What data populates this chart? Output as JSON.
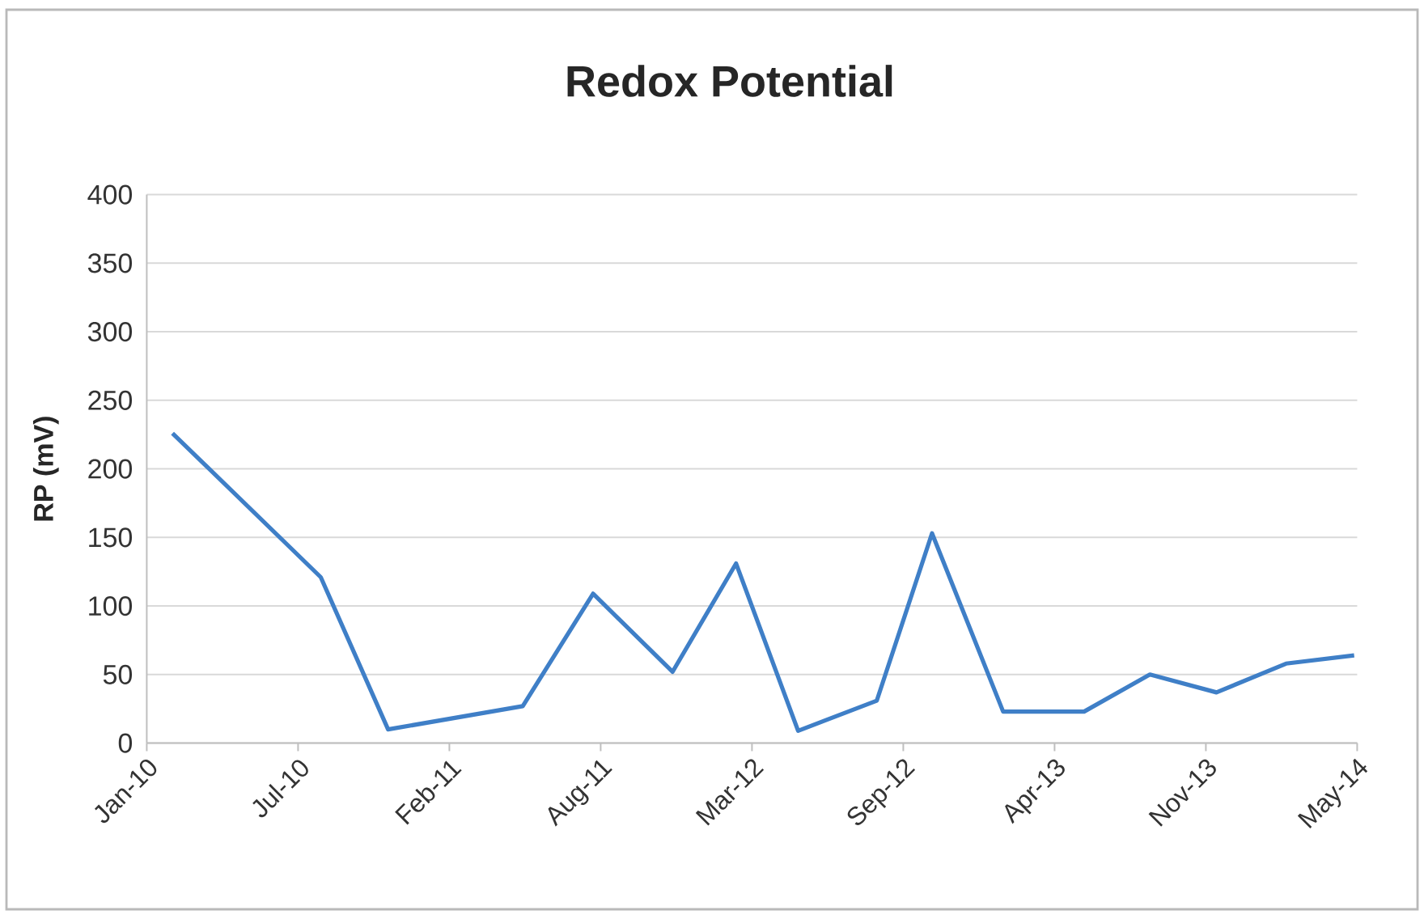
{
  "chart_data": {
    "type": "line",
    "title": "Redox Potential",
    "ylabel": "RP (mV)",
    "x": [
      "2010-02-04",
      "2010-08-19",
      "2010-11-16",
      "2011-05-13",
      "2011-08-14",
      "2011-11-27",
      "2012-02-19",
      "2012-05-11",
      "2012-08-23",
      "2012-11-04",
      "2013-02-06",
      "2013-05-24",
      "2013-08-19",
      "2013-11-15",
      "2014-02-15",
      "2014-05-16"
    ],
    "series": [
      {
        "color": "#3f7fc7",
        "values": [
          226,
          121,
          10,
          27,
          109,
          52,
          131,
          9,
          31,
          153,
          23,
          23,
          50,
          37,
          58,
          64
        ]
      }
    ],
    "xlim": [
      "2010-01-01",
      "2014-05-20"
    ],
    "xticks": [
      {
        "value": "2010-01-01",
        "label": "Jan-10"
      },
      {
        "value": "2010-07-20",
        "label": "Jul-10"
      },
      {
        "value": "2011-02-05",
        "label": "Feb-11"
      },
      {
        "value": "2011-08-24",
        "label": "Aug-11"
      },
      {
        "value": "2012-03-11",
        "label": "Mar-12"
      },
      {
        "value": "2012-09-27",
        "label": "Sep-12"
      },
      {
        "value": "2013-04-15",
        "label": "Apr-13"
      },
      {
        "value": "2013-11-01",
        "label": "Nov-13"
      },
      {
        "value": "2014-05-20",
        "label": "May-14"
      }
    ],
    "ylim": [
      0,
      400
    ],
    "yticks": [
      0,
      50,
      100,
      150,
      200,
      250,
      300,
      350,
      400
    ],
    "grid": "y",
    "line_style": "solid"
  }
}
